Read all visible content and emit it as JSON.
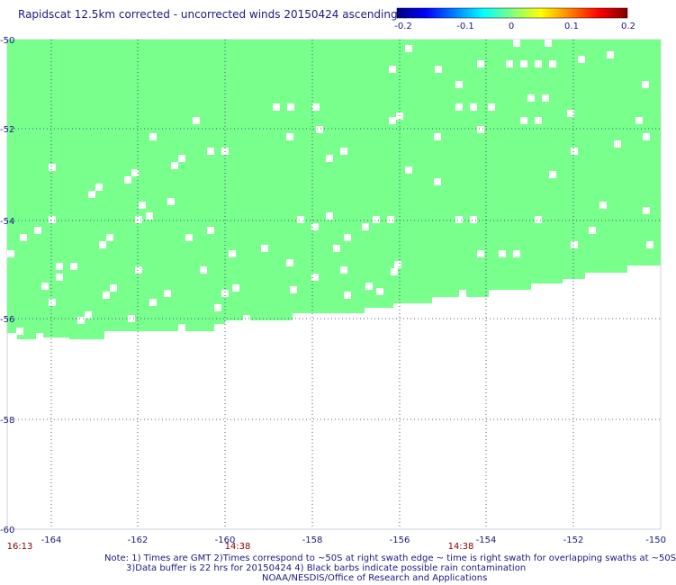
{
  "title": "Rapidscat 12.5km corrected - uncorrected winds 20150424 ascending",
  "colorbar": {
    "ticks": [
      "-0.2",
      "-0.1",
      "0",
      "0.1",
      "0.2"
    ],
    "colors": [
      "#000080",
      "#0000ff",
      "#0080ff",
      "#00ffff",
      "#80ff80",
      "#ffff00",
      "#ff8000",
      "#ff0000",
      "#800000"
    ]
  },
  "map": {
    "longitude_labels": [
      "-164",
      "-162",
      "-160",
      "-158",
      "-156",
      "-154",
      "-152",
      "-150"
    ],
    "latitude_labels": [
      "-50",
      "-52",
      "-54",
      "-56",
      "-58",
      "-60"
    ],
    "time_labels": [
      "16:13",
      "14:38",
      "14:38"
    ],
    "fill_color": "#78ff8c",
    "grid": "dotted"
  },
  "notes": [
    "Note: 1) Times are GMT 2)Times correspond to ~50S at right swath edge ~ time is right swath for overlapping swaths at ~50S",
    "3)Data buffer is 22 hrs for 20150424 4) Black barbs indicate possible rain contamination",
    "NOAA/NESDIS/Office of Research and Applications"
  ]
}
